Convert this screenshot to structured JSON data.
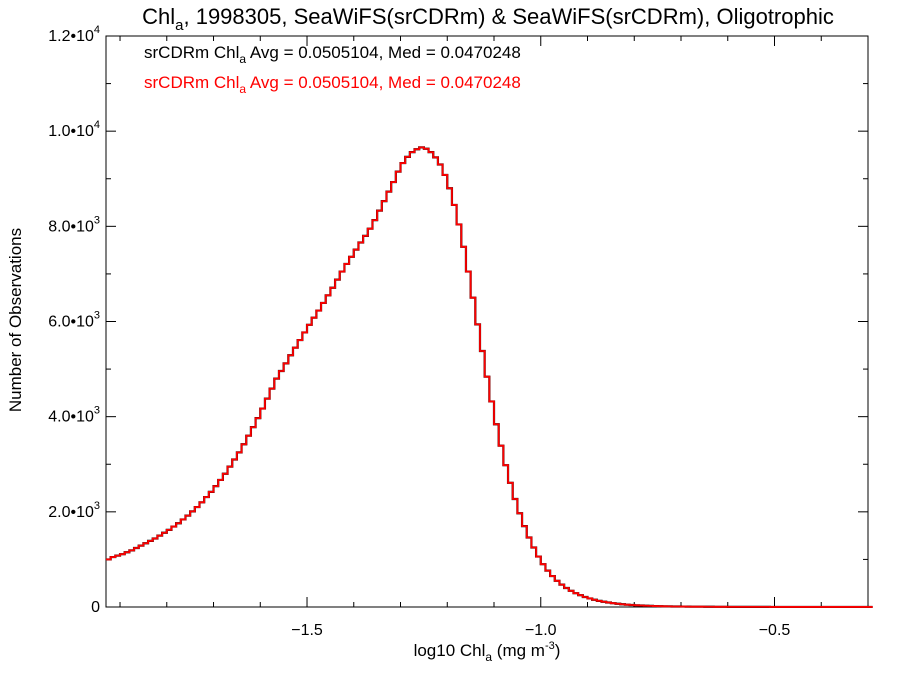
{
  "chart_data": {
    "type": "histogram-step",
    "title": {
      "prefix": "Chl",
      "sub": "a",
      "rest": ", 1998305, SeaWiFS(srCDRm) & SeaWiFS(srCDRm), Oligotrophic"
    },
    "xlabel": {
      "prefix": "log10 Chl",
      "sub": "a",
      "mid": " (mg m",
      "sup": "-3",
      "end": ")"
    },
    "ylabel": "Number of Observations",
    "xlim": [
      -1.93,
      -0.3
    ],
    "ylim": [
      0,
      12000
    ],
    "x_ticks": [
      {
        "value": -1.5,
        "label": "−1.5"
      },
      {
        "value": -1.0,
        "label": "−1.0"
      },
      {
        "value": -0.5,
        "label": "−0.5"
      }
    ],
    "y_ticks": [
      {
        "value": 0,
        "mantissa": "0",
        "exp": ""
      },
      {
        "value": 2000,
        "mantissa": "2.0•10",
        "exp": "3"
      },
      {
        "value": 4000,
        "mantissa": "4.0•10",
        "exp": "3"
      },
      {
        "value": 6000,
        "mantissa": "6.0•10",
        "exp": "3"
      },
      {
        "value": 8000,
        "mantissa": "8.0•10",
        "exp": "3"
      },
      {
        "value": 10000,
        "mantissa": "1.0•10",
        "exp": "4"
      },
      {
        "value": 12000,
        "mantissa": "1.2•10",
        "exp": "4"
      }
    ],
    "legend": [
      {
        "prefix": "srCDRm Chl",
        "sub": "a",
        "rest": " Avg = 0.0505104, Med = 0.0470248",
        "color": "#000000"
      },
      {
        "prefix": "srCDRm Chl",
        "sub": "a",
        "rest": " Avg = 0.0505104, Med = 0.0470248",
        "color": "#ff0000"
      }
    ],
    "legend_position": "top-left",
    "series": [
      {
        "color": "#000000"
      },
      {
        "color": "#ff0000"
      }
    ],
    "histogram": {
      "bin_start": -1.93,
      "bin_width": 0.01,
      "counts": [
        1000,
        1050,
        1080,
        1110,
        1150,
        1190,
        1240,
        1290,
        1340,
        1390,
        1440,
        1500,
        1560,
        1620,
        1690,
        1760,
        1840,
        1920,
        2010,
        2100,
        2200,
        2310,
        2420,
        2540,
        2670,
        2800,
        2950,
        3100,
        3250,
        3420,
        3600,
        3780,
        3970,
        4170,
        4380,
        4590,
        4800,
        4960,
        5120,
        5290,
        5450,
        5610,
        5770,
        5930,
        6080,
        6230,
        6390,
        6550,
        6710,
        6880,
        7050,
        7210,
        7360,
        7510,
        7660,
        7800,
        7950,
        8130,
        8330,
        8530,
        8730,
        8930,
        9150,
        9330,
        9460,
        9560,
        9620,
        9660,
        9630,
        9560,
        9450,
        9300,
        9080,
        8800,
        8450,
        8040,
        7570,
        7050,
        6500,
        5940,
        5380,
        4840,
        4320,
        3840,
        3390,
        2980,
        2610,
        2270,
        1970,
        1700,
        1460,
        1250,
        1060,
        900,
        765,
        650,
        550,
        470,
        400,
        340,
        290,
        248,
        210,
        180,
        152,
        129,
        110,
        94,
        80,
        68,
        58,
        49,
        42,
        36,
        31,
        27,
        23,
        20,
        17,
        15,
        13,
        11,
        10,
        9,
        8,
        7,
        6,
        6,
        5,
        5,
        4,
        4,
        4,
        3,
        3,
        3,
        2,
        2,
        2,
        2,
        2,
        2,
        1,
        1,
        1,
        1,
        1,
        1,
        1,
        1,
        1,
        1,
        1,
        1,
        1,
        1,
        1,
        1,
        1,
        1,
        1,
        1,
        1,
        1,
        1
      ]
    }
  }
}
